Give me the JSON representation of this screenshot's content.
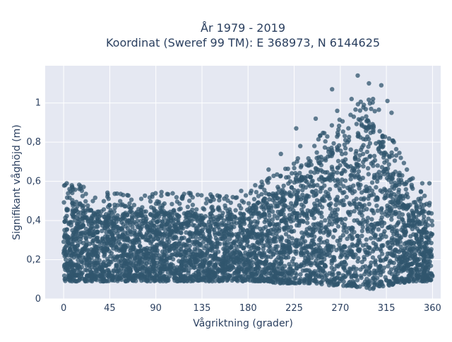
{
  "chart_data": {
    "type": "scatter",
    "title_lines": [
      "År 1979 - 2019",
      "Koordinat (Sweref 99 TM): E 368973, N 6144625"
    ],
    "xlabel": "Vågriktning (grader)",
    "ylabel": "Signifikant våghöjd (m)",
    "xlim": [
      -18,
      368
    ],
    "ylim": [
      0,
      1.19
    ],
    "x_ticks": [
      0,
      45,
      90,
      135,
      180,
      225,
      270,
      315,
      360
    ],
    "x_tick_labels": [
      "0",
      "45",
      "90",
      "135",
      "180",
      "225",
      "270",
      "315",
      "360"
    ],
    "y_ticks": [
      0,
      0.2,
      0.4,
      0.6,
      0.8,
      1
    ],
    "y_tick_labels": [
      "0",
      "0,2",
      "0,4",
      "0,6",
      "0,8",
      "1"
    ],
    "grid": true,
    "legend": "none",
    "marker_color": "#30566e",
    "background_color": "#e5e8f2",
    "envelope": {
      "x": [
        0,
        10,
        30,
        45,
        60,
        75,
        90,
        110,
        135,
        150,
        165,
        180,
        195,
        210,
        225,
        240,
        255,
        270,
        280,
        290,
        300,
        310,
        320,
        330,
        340,
        350,
        360
      ],
      "lower": [
        0.09,
        0.09,
        0.09,
        0.09,
        0.09,
        0.09,
        0.09,
        0.09,
        0.09,
        0.09,
        0.09,
        0.09,
        0.09,
        0.08,
        0.08,
        0.08,
        0.07,
        0.07,
        0.06,
        0.05,
        0.05,
        0.06,
        0.07,
        0.08,
        0.09,
        0.09,
        0.09
      ],
      "upper": [
        0.48,
        0.5,
        0.46,
        0.45,
        0.44,
        0.45,
        0.45,
        0.45,
        0.44,
        0.43,
        0.44,
        0.46,
        0.51,
        0.56,
        0.62,
        0.7,
        0.76,
        0.82,
        0.86,
        0.92,
        0.92,
        0.85,
        0.74,
        0.62,
        0.52,
        0.46,
        0.4
      ]
    },
    "notable_points": [
      {
        "x": 287,
        "y": 1.14
      },
      {
        "x": 298,
        "y": 1.1
      },
      {
        "x": 310,
        "y": 1.09
      },
      {
        "x": 262,
        "y": 1.07
      },
      {
        "x": 302,
        "y": 1.02
      },
      {
        "x": 281,
        "y": 1.02
      },
      {
        "x": 316,
        "y": 1.01
      },
      {
        "x": 293,
        "y": 0.99
      },
      {
        "x": 267,
        "y": 0.96
      },
      {
        "x": 246,
        "y": 0.92
      },
      {
        "x": 227,
        "y": 0.87
      },
      {
        "x": 320,
        "y": 0.95
      },
      {
        "x": 3,
        "y": 0.59
      },
      {
        "x": 8,
        "y": 0.58
      },
      {
        "x": 58,
        "y": 0.53
      },
      {
        "x": 124,
        "y": 0.53
      },
      {
        "x": 145,
        "y": 0.47
      },
      {
        "x": 350,
        "y": 0.59
      },
      {
        "x": 357,
        "y": 0.59
      },
      {
        "x": 187,
        "y": 0.58
      },
      {
        "x": 200,
        "y": 0.66
      },
      {
        "x": 212,
        "y": 0.74
      },
      {
        "x": 231,
        "y": 0.78
      },
      {
        "x": 335,
        "y": 0.66
      }
    ]
  }
}
